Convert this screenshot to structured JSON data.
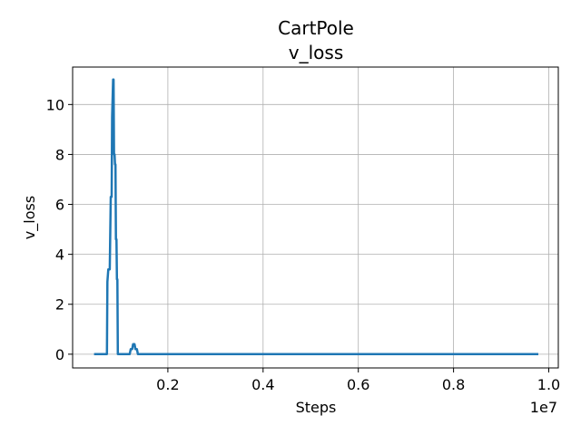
{
  "chart_data": {
    "type": "line",
    "title": "CartPole",
    "subtitle": "v_loss",
    "xlabel": "Steps",
    "ylabel": "v_loss",
    "x_offset_label": "1e7",
    "xlim": [
      0.0,
      1.02
    ],
    "ylim": [
      -0.55,
      11.5
    ],
    "xticks": [
      0.2,
      0.4,
      0.6,
      0.8,
      1.0
    ],
    "xtick_labels": [
      "0.2",
      "0.4",
      "0.6",
      "0.8",
      "1.0"
    ],
    "yticks": [
      0,
      2,
      4,
      6,
      8,
      10
    ],
    "ytick_labels": [
      "0",
      "2",
      "4",
      "6",
      "8",
      "10"
    ],
    "grid": true,
    "series_color": "#1f77b4",
    "series": [
      {
        "x": [
          0.045,
          0.072,
          0.073,
          0.075,
          0.078,
          0.08,
          0.082,
          0.083,
          0.085,
          0.086,
          0.087,
          0.088,
          0.089,
          0.09,
          0.091,
          0.092,
          0.093,
          0.094,
          0.095,
          0.096,
          0.097,
          0.098,
          0.1,
          0.12,
          0.122,
          0.125,
          0.127,
          0.13,
          0.132,
          0.135,
          0.137,
          0.14,
          0.978
        ],
        "y": [
          0.0,
          0.0,
          2.9,
          3.4,
          3.4,
          6.3,
          6.3,
          9.5,
          11.0,
          11.0,
          8.0,
          8.0,
          7.6,
          7.6,
          4.6,
          4.6,
          3.0,
          3.0,
          0.0,
          0.0,
          0.0,
          0.0,
          0.0,
          0.0,
          0.2,
          0.2,
          0.4,
          0.4,
          0.2,
          0.2,
          0.0,
          0.0,
          0.0
        ]
      }
    ]
  }
}
